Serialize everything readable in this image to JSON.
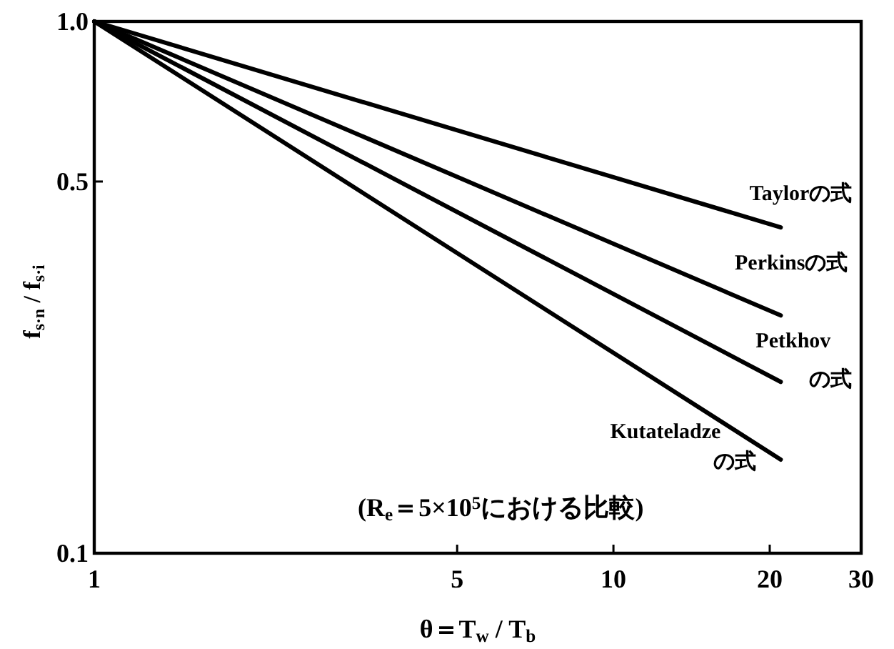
{
  "chart_data": {
    "type": "line",
    "xlabel": "θ＝T$_{w}$ / T$_{b}$",
    "ylabel": "f$_{s·n}$ / f$_{s·i}$",
    "annotations": [
      "(R$_{e}$＝5×10$^{5}$における比較)"
    ],
    "log": "xy",
    "xlim": [
      1,
      30
    ],
    "xticks": [
      1,
      5,
      10,
      20,
      30
    ],
    "ylim": [
      0.1,
      1.0
    ],
    "yticks": [
      0.1,
      0.5,
      {
        "value": 1,
        "label": "1.0"
      }
    ],
    "line_style": "solid",
    "x": [
      1,
      21
    ],
    "series": [
      {
        "name": "Taylorの式",
        "color": "#000000",
        "values": [
          1,
          0.41
        ]
      },
      {
        "name": "Perkinsの式",
        "color": "#000000",
        "values": [
          1,
          0.28
        ]
      },
      {
        "name": "Petkhov\nの式",
        "color": "#000000",
        "values": [
          1,
          0.21
        ]
      },
      {
        "name": "Kutateladze\nの式",
        "color": "#000000",
        "values": [
          1,
          0.15
        ]
      }
    ]
  }
}
